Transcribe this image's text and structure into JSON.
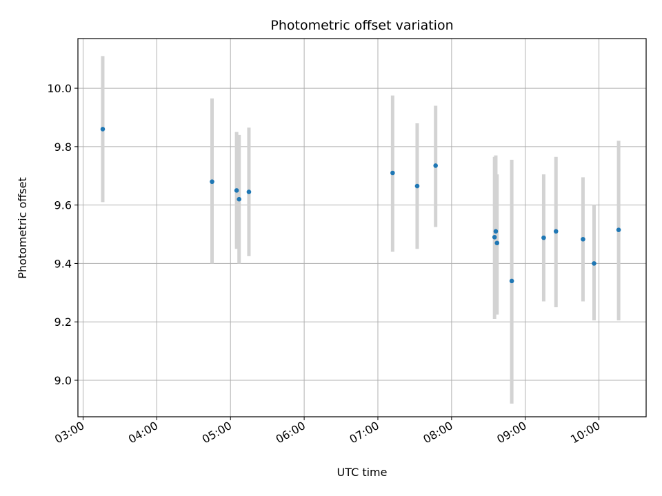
{
  "chart_data": {
    "type": "scatter",
    "title": "Photometric offset variation",
    "xlabel": "UTC time",
    "ylabel": "Photometric offset",
    "x_tick_labels": [
      "03:00",
      "04:00",
      "05:00",
      "06:00",
      "07:00",
      "08:00",
      "09:00",
      "10:00"
    ],
    "y_tick_labels": [
      "9.0",
      "9.2",
      "9.4",
      "9.6",
      "9.8",
      "10.0"
    ],
    "x_ticks_hours": [
      3,
      4,
      5,
      6,
      7,
      8,
      9,
      10
    ],
    "y_ticks": [
      9.0,
      9.2,
      9.4,
      9.6,
      9.8,
      10.0
    ],
    "xlim_hours": [
      2.93,
      10.64
    ],
    "ylim": [
      8.875,
      10.17
    ],
    "grid": true,
    "point_color": "#1f77b4",
    "errorbar_color": "#d3d3d3",
    "points": [
      {
        "time": "03:16",
        "y": 9.86,
        "ylow": 9.61,
        "yhigh": 10.11
      },
      {
        "time": "04:45",
        "y": 9.68,
        "ylow": 9.4,
        "yhigh": 9.965
      },
      {
        "time": "05:05",
        "y": 9.65,
        "ylow": 9.45,
        "yhigh": 9.85
      },
      {
        "time": "05:07",
        "y": 9.62,
        "ylow": 9.4,
        "yhigh": 9.84
      },
      {
        "time": "05:15",
        "y": 9.645,
        "ylow": 9.425,
        "yhigh": 9.865
      },
      {
        "time": "07:12",
        "y": 9.71,
        "ylow": 9.44,
        "yhigh": 9.975
      },
      {
        "time": "07:32",
        "y": 9.665,
        "ylow": 9.45,
        "yhigh": 9.88
      },
      {
        "time": "07:47",
        "y": 9.735,
        "ylow": 9.525,
        "yhigh": 9.94
      },
      {
        "time": "08:35",
        "y": 9.49,
        "ylow": 9.21,
        "yhigh": 9.765
      },
      {
        "time": "08:36",
        "y": 9.51,
        "ylow": 9.3,
        "yhigh": 9.77
      },
      {
        "time": "08:37",
        "y": 9.47,
        "ylow": 9.225,
        "yhigh": 9.705
      },
      {
        "time": "08:49",
        "y": 9.34,
        "ylow": 8.92,
        "yhigh": 9.755
      },
      {
        "time": "09:15",
        "y": 9.488,
        "ylow": 9.27,
        "yhigh": 9.705
      },
      {
        "time": "09:25",
        "y": 9.51,
        "ylow": 9.25,
        "yhigh": 9.765
      },
      {
        "time": "09:47",
        "y": 9.483,
        "ylow": 9.27,
        "yhigh": 9.695
      },
      {
        "time": "09:56",
        "y": 9.4,
        "ylow": 9.205,
        "yhigh": 9.6
      },
      {
        "time": "10:16",
        "y": 9.515,
        "ylow": 9.205,
        "yhigh": 9.82
      }
    ]
  }
}
